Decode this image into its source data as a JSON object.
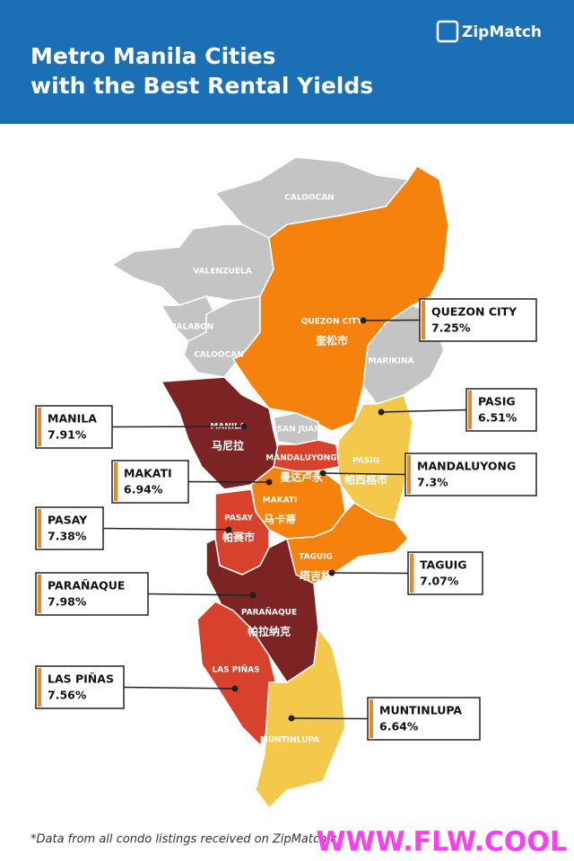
{
  "header": {
    "title_lines": [
      "Metro Manila Cities",
      "with the Best Rental Yields"
    ],
    "brand": "ZipMatch"
  },
  "map_labels": [
    {
      "name": "CALOOCAN"
    },
    {
      "name": "VALENZUELA"
    },
    {
      "name": "MALABON"
    },
    {
      "name": "CALOOCAN"
    },
    {
      "name": "QUEZON CITY",
      "local": "奎松市"
    },
    {
      "name": "MARIKINA"
    },
    {
      "name": "MANILA",
      "local": "马尼拉"
    },
    {
      "name": "SAN JUAN"
    },
    {
      "name": "MANDALUYONG",
      "local": "曼达卢永"
    },
    {
      "name": "PASIG",
      "local": "帕西格市"
    },
    {
      "name": "MAKATI",
      "local": "马卡蒂"
    },
    {
      "name": "PASAY",
      "local": "帕赛市"
    },
    {
      "name": "TAGUIG",
      "local": "塔吉格"
    },
    {
      "name": "PARAÑAQUE",
      "local": "帕拉纳克"
    },
    {
      "name": "LAS PIÑAS"
    },
    {
      "name": "MUNTINLUPA"
    }
  ],
  "callouts": [
    {
      "name": "QUEZON CITY",
      "yield": "7.25%"
    },
    {
      "name": "PASIG",
      "yield": "6.51%"
    },
    {
      "name": "MANILA",
      "yield": "7.91%"
    },
    {
      "name": "MAKATI",
      "yield": "6.94%"
    },
    {
      "name": "MANDALUYONG",
      "yield": "7.3%"
    },
    {
      "name": "PASAY",
      "yield": "7.38%"
    },
    {
      "name": "TAGUIG",
      "yield": "7.07%"
    },
    {
      "name": "PARAÑAQUE",
      "yield": "7.98%"
    },
    {
      "name": "LAS PIÑAS",
      "yield": "7.56%"
    },
    {
      "name": "MUNTINLUPA",
      "yield": "6.64%"
    }
  ],
  "footnote": "*Data from all condo listings received on ZipMatch.c",
  "watermark": "WWW.FLW.COOL"
}
